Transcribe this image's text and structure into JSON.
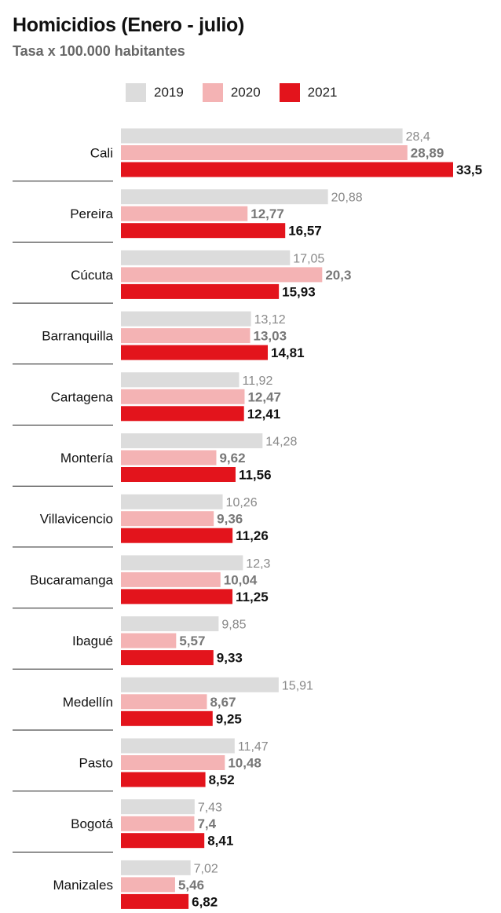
{
  "title": "Homicidios (Enero - julio)",
  "subtitle": "Tasa x 100.000 habitantes",
  "colors": {
    "2019": "#dcdcdc",
    "2020": "#f4b3b4",
    "2021": "#e3141c",
    "label_2019": "#888888",
    "label_2020": "#777777",
    "label_2021": "#111111"
  },
  "chart_data": {
    "type": "bar",
    "orientation": "horizontal",
    "title": "Homicidios (Enero - julio)",
    "subtitle": "Tasa x 100.000 habitantes",
    "legend_placement": "top",
    "grid": false,
    "xlim": [
      0,
      33.5
    ],
    "categories": [
      "Cali",
      "Pereira",
      "Cúcuta",
      "Barranquilla",
      "Cartagena",
      "Montería",
      "Villavicencio",
      "Bucaramanga",
      "Ibagué",
      "Medellín",
      "Pasto",
      "Bogotá",
      "Manizales"
    ],
    "series": [
      {
        "name": "2019",
        "values": [
          28.4,
          20.88,
          17.05,
          13.12,
          11.92,
          14.28,
          10.26,
          12.3,
          9.85,
          15.91,
          11.47,
          7.43,
          7.02
        ],
        "labels": [
          "28,4",
          "20,88",
          "17,05",
          "13,12",
          "11,92",
          "14,28",
          "10,26",
          "12,3",
          "9,85",
          "15,91",
          "11,47",
          "7,43",
          "7,02"
        ]
      },
      {
        "name": "2020",
        "values": [
          28.89,
          12.77,
          20.3,
          13.03,
          12.47,
          9.62,
          9.36,
          10.04,
          5.57,
          8.67,
          10.48,
          7.4,
          5.46
        ],
        "labels": [
          "28,89",
          "12,77",
          "20,3",
          "13,03",
          "12,47",
          "9,62",
          "9,36",
          "10,04",
          "5,57",
          "8,67",
          "10,48",
          "7,4",
          "5,46"
        ]
      },
      {
        "name": "2021",
        "values": [
          33.5,
          16.57,
          15.93,
          14.81,
          12.41,
          11.56,
          11.26,
          11.25,
          9.33,
          9.25,
          8.52,
          8.41,
          6.82
        ],
        "labels": [
          "33,5",
          "16,57",
          "15,93",
          "14,81",
          "12,41",
          "11,56",
          "11,26",
          "11,25",
          "9,33",
          "9,25",
          "8,52",
          "8,41",
          "6,82"
        ]
      }
    ]
  }
}
